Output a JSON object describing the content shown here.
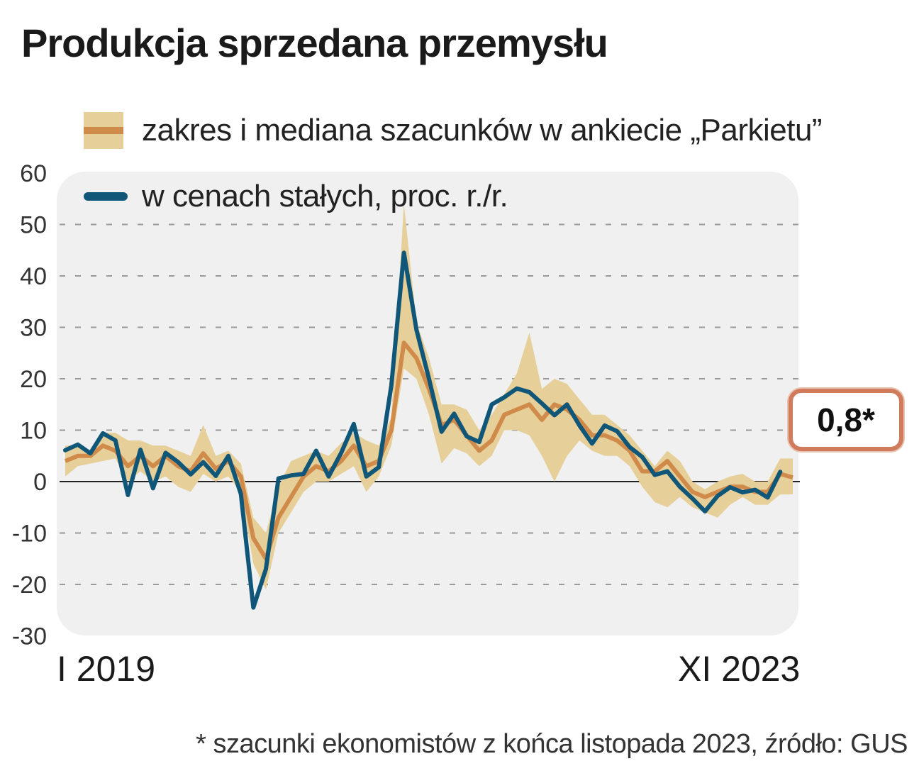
{
  "title": "Produkcja sprzedana przemysłu",
  "legend": {
    "range_label": "zakres i mediana szacunków w ankiecie „Parkietu”",
    "line_label": "w cenach stałych, proc. r./r."
  },
  "x_start_label": "I 2019",
  "x_end_label": "XI 2023",
  "callout": "0,8*",
  "footnote": "* szacunki ekonomistów z końca listopada 2023, źródło: GUS",
  "colors": {
    "band": "#e6cf98",
    "median": "#d08a4a",
    "line": "#0f5678",
    "plot_bg": "#f0f0f0",
    "callout_border": "#cf7b5c"
  },
  "chart_data": {
    "type": "line",
    "ylim": [
      -30,
      60
    ],
    "yticks": [
      "60",
      "50",
      "40",
      "30",
      "20",
      "10",
      "0",
      "-10",
      "-20",
      "-30"
    ],
    "period": [
      "I 2019",
      "XI 2023"
    ],
    "series": [
      {
        "name": "w cenach stałych, proc. r./r.",
        "values": [
          6.1,
          7.2,
          5.5,
          9.4,
          8.0,
          -2.6,
          6.2,
          -1.3,
          5.6,
          3.8,
          1.4,
          3.8,
          1.1,
          5.0,
          -2.4,
          -24.5,
          -17.0,
          0.6,
          1.2,
          1.5,
          6.0,
          1.0,
          5.6,
          11.2,
          1.0,
          2.8,
          18.7,
          44.5,
          29.5,
          20.0,
          9.7,
          13.2,
          8.8,
          7.7,
          15.0,
          16.4,
          18.1,
          17.4,
          15.2,
          12.9,
          15.0,
          10.9,
          7.4,
          10.9,
          9.8,
          6.7,
          4.8,
          1.3,
          2.0,
          -1.0,
          -3.3,
          -5.8,
          -2.8,
          -1.1,
          -2.1,
          -1.6,
          -3.1,
          1.9
        ]
      },
      {
        "name": "mediana szacunków",
        "values": [
          4.0,
          5.0,
          5.0,
          7.0,
          6.0,
          3.0,
          5.0,
          3.0,
          5.0,
          3.0,
          2.0,
          5.5,
          2.5,
          4.0,
          1.0,
          -11.0,
          -15.0,
          -7.0,
          -3.0,
          1.0,
          3.0,
          2.0,
          4.0,
          7.0,
          3.0,
          4.0,
          10.0,
          27.0,
          24.0,
          18.0,
          11.0,
          12.0,
          9.0,
          6.0,
          8.0,
          13.0,
          14.0,
          15.0,
          12.0,
          15.0,
          14.0,
          12.0,
          9.0,
          9.0,
          8.0,
          6.0,
          2.0,
          2.0,
          4.0,
          1.0,
          -2.0,
          -3.0,
          -2.0,
          -1.0,
          -1.0,
          -2.0,
          -2.0,
          1.5,
          0.8
        ]
      }
    ],
    "band": {
      "name": "zakres szacunków",
      "low": [
        1.0,
        3.0,
        3.5,
        4.0,
        4.5,
        0.0,
        2.0,
        0.0,
        1.0,
        -1.0,
        -2.0,
        1.5,
        0.0,
        1.0,
        -2.0,
        -16.0,
        -21.0,
        -10.0,
        -6.0,
        -2.0,
        0.0,
        0.0,
        1.5,
        3.0,
        -2.0,
        1.0,
        7.0,
        22.0,
        20.0,
        13.0,
        3.5,
        6.5,
        5.5,
        3.0,
        5.0,
        10.0,
        10.0,
        9.0,
        5.0,
        0.0,
        5.0,
        8.0,
        6.0,
        5.0,
        5.0,
        3.0,
        -1.0,
        -4.0,
        -5.0,
        -3.0,
        -5.0,
        -6.0,
        -7.0,
        -4.5,
        -3.0,
        -4.5,
        -4.5,
        -2.5,
        -2.5
      ],
      "high": [
        7.0,
        7.0,
        6.0,
        9.5,
        9.5,
        8.0,
        8.0,
        7.0,
        7.0,
        6.0,
        5.0,
        11.0,
        5.0,
        6.0,
        3.5,
        -7.0,
        -10.0,
        -1.0,
        4.0,
        5.0,
        6.0,
        5.0,
        7.5,
        9.5,
        8.0,
        7.0,
        12.5,
        54.0,
        31.0,
        24.0,
        15.0,
        15.0,
        14.0,
        10.0,
        13.0,
        17.0,
        21.0,
        29.0,
        18.0,
        20.0,
        19.0,
        16.0,
        13.0,
        13.0,
        11.0,
        9.0,
        6.0,
        3.0,
        6.0,
        4.0,
        0.0,
        -1.5,
        0.0,
        1.0,
        1.5,
        0.0,
        0.0,
        4.5,
        4.5
      ]
    }
  }
}
